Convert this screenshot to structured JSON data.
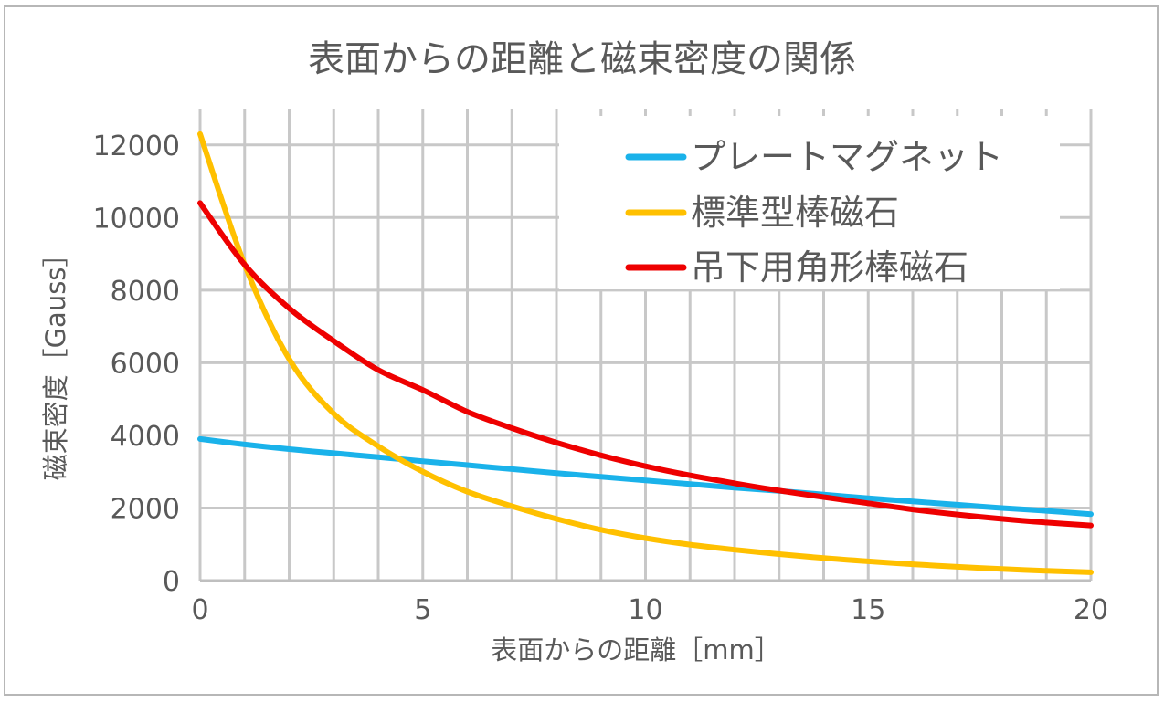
{
  "chart_data": {
    "type": "line",
    "title": "表面からの距離と磁束密度の関係",
    "xlabel": "表面からの距離［mm］",
    "ylabel": "磁束密度［Gauss］",
    "xlim": [
      0,
      20
    ],
    "ylim": [
      0,
      13000
    ],
    "x_ticks": [
      "0",
      "5",
      "10",
      "15",
      "20"
    ],
    "y_ticks": [
      "0",
      "2000",
      "4000",
      "6000",
      "8000",
      "10000",
      "12000"
    ],
    "grid": "major and minor, both axes",
    "legend_position": "top-right",
    "x": [
      0,
      1,
      2,
      3,
      4,
      5,
      6,
      7,
      8,
      9,
      10,
      11,
      12,
      13,
      14,
      15,
      16,
      17,
      18,
      19,
      20
    ],
    "series": [
      {
        "name": "プレートマグネット",
        "color": "#1ab2ea",
        "values": [
          3900,
          3750,
          3620,
          3510,
          3400,
          3290,
          3180,
          3070,
          2960,
          2860,
          2760,
          2660,
          2560,
          2470,
          2370,
          2270,
          2180,
          2090,
          2000,
          1920,
          1830
        ]
      },
      {
        "name": "標準型棒磁石",
        "color": "#ffc000",
        "values": [
          12300,
          8700,
          6100,
          4600,
          3700,
          3000,
          2450,
          2050,
          1700,
          1400,
          1170,
          990,
          850,
          730,
          620,
          530,
          450,
          380,
          320,
          270,
          230
        ]
      },
      {
        "name": "吊下用角形棒磁石",
        "color": "#ee0000",
        "values": [
          10400,
          8700,
          7500,
          6600,
          5800,
          5250,
          4650,
          4200,
          3800,
          3450,
          3150,
          2900,
          2680,
          2480,
          2300,
          2130,
          1960,
          1820,
          1700,
          1600,
          1520
        ]
      }
    ]
  }
}
